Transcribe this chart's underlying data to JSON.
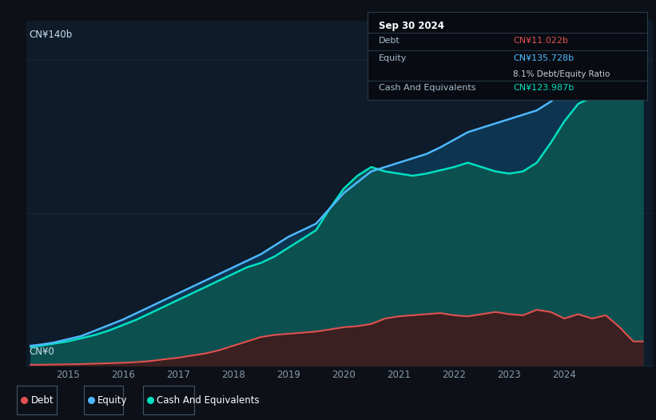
{
  "background_color": "#0d1117",
  "chart_bg": "#0d1b2a",
  "title_label": "CN¥140b",
  "zero_label": "CN¥0",
  "ylim": [
    0,
    158
  ],
  "xlim": [
    2013.75,
    2025.1
  ],
  "debt_color": "#e05050",
  "equity_color": "#4db8ff",
  "cash_color": "#00e0c0",
  "debt_fill": "#3a2020",
  "equity_fill": "#0d3550",
  "cash_fill": "#0d5050",
  "tooltip_bg": "#080c12",
  "tooltip_border": "#2a3a4a",
  "tooltip_title": "Sep 30 2024",
  "tooltip_debt_label": "Debt",
  "tooltip_debt_value": "CN¥11.022b",
  "tooltip_equity_label": "Equity",
  "tooltip_equity_value": "CN¥135.728b",
  "tooltip_ratio": "8.1% Debt/Equity Ratio",
  "tooltip_ratio_bold": "8.1%",
  "tooltip_cash_label": "Cash And Equivalents",
  "tooltip_cash_value": "CN¥123.987b",
  "legend_debt": "Debt",
  "legend_equity": "Equity",
  "legend_cash": "Cash And Equivalents",
  "years": [
    2013.83,
    2014.0,
    2014.25,
    2014.5,
    2014.75,
    2015.0,
    2015.25,
    2015.5,
    2015.75,
    2016.0,
    2016.25,
    2016.5,
    2016.75,
    2017.0,
    2017.25,
    2017.5,
    2017.75,
    2018.0,
    2018.25,
    2018.5,
    2018.75,
    2019.0,
    2019.25,
    2019.5,
    2019.75,
    2020.0,
    2020.25,
    2020.5,
    2020.75,
    2021.0,
    2021.25,
    2021.5,
    2021.75,
    2022.0,
    2022.25,
    2022.5,
    2022.75,
    2023.0,
    2023.25,
    2023.5,
    2023.75,
    2024.0,
    2024.25,
    2024.5,
    2024.75,
    2024.92
  ],
  "debt": [
    0.3,
    0.3,
    0.4,
    0.5,
    0.6,
    0.8,
    1.0,
    1.2,
    1.5,
    2.0,
    2.8,
    3.5,
    4.5,
    5.5,
    7.0,
    9.0,
    11.0,
    13.0,
    14.0,
    14.5,
    15.0,
    15.5,
    16.5,
    17.5,
    18.0,
    19.0,
    21.5,
    22.5,
    23.0,
    23.5,
    24.0,
    23.0,
    22.5,
    23.5,
    24.5,
    23.5,
    23.0,
    25.5,
    24.5,
    21.5,
    23.5,
    21.5,
    23.0,
    17.5,
    11.0,
    11.0
  ],
  "equity": [
    9.0,
    9.5,
    10.5,
    12.0,
    13.5,
    16.0,
    18.5,
    21.0,
    24.0,
    27.0,
    30.0,
    33.0,
    36.0,
    39.0,
    42.0,
    45.0,
    48.0,
    51.0,
    55.0,
    59.0,
    62.0,
    65.0,
    72.0,
    79.0,
    84.0,
    89.0,
    91.0,
    93.0,
    95.0,
    97.0,
    100.0,
    103.5,
    107.0,
    109.0,
    111.0,
    113.0,
    115.0,
    117.0,
    121.0,
    126.0,
    130.0,
    132.0,
    134.0,
    138.0,
    142.0,
    135.7
  ],
  "cash": [
    8.5,
    9.0,
    10.0,
    11.0,
    12.5,
    14.0,
    16.0,
    18.5,
    21.0,
    24.0,
    27.0,
    30.0,
    33.0,
    36.0,
    39.0,
    42.0,
    45.0,
    47.0,
    50.0,
    54.0,
    58.0,
    62.0,
    72.0,
    81.0,
    87.0,
    91.0,
    89.0,
    88.0,
    87.0,
    88.0,
    89.5,
    91.0,
    93.0,
    91.0,
    89.0,
    88.0,
    89.0,
    93.0,
    102.0,
    112.0,
    120.0,
    123.0,
    126.0,
    129.0,
    131.0,
    124.0
  ]
}
